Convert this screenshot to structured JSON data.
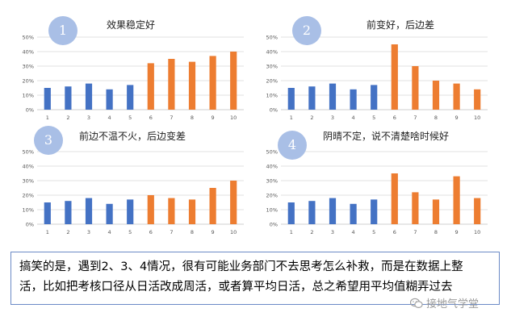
{
  "colors": {
    "blue": "#4472c4",
    "orange": "#ed7d31",
    "badge": "#a9bfe6",
    "grid": "#d9d9d9",
    "border": "#6b8ac6"
  },
  "chart_data": [
    {
      "type": "bar",
      "badge": "1",
      "title": "效果稳定好",
      "categories": [
        "1",
        "2",
        "3",
        "4",
        "5",
        "6",
        "7",
        "8",
        "9",
        "10"
      ],
      "values": [
        15,
        16,
        18,
        14,
        17,
        32,
        35,
        33,
        37,
        40
      ],
      "bar_colors": [
        "blue",
        "blue",
        "blue",
        "blue",
        "blue",
        "orange",
        "orange",
        "orange",
        "orange",
        "orange"
      ],
      "ylim": [
        0,
        50
      ],
      "yticks": [
        "0%",
        "10%",
        "20%",
        "30%",
        "40%",
        "50%"
      ],
      "grid": true
    },
    {
      "type": "bar",
      "badge": "2",
      "title": "前变好，后边差",
      "categories": [
        "1",
        "2",
        "3",
        "4",
        "5",
        "6",
        "7",
        "8",
        "9",
        "10"
      ],
      "values": [
        15,
        16,
        18,
        14,
        17,
        45,
        30,
        20,
        18,
        14
      ],
      "bar_colors": [
        "blue",
        "blue",
        "blue",
        "blue",
        "blue",
        "orange",
        "orange",
        "orange",
        "orange",
        "orange"
      ],
      "ylim": [
        0,
        50
      ],
      "yticks": [
        "0%",
        "10%",
        "20%",
        "30%",
        "40%",
        "50%"
      ],
      "grid": true
    },
    {
      "type": "bar",
      "badge": "3",
      "title": "前边不温不火，后边变差",
      "categories": [
        "1",
        "2",
        "3",
        "4",
        "5",
        "6",
        "7",
        "8",
        "9",
        "10"
      ],
      "values": [
        15,
        16,
        18,
        14,
        17,
        20,
        18,
        17,
        25,
        30
      ],
      "bar_colors": [
        "blue",
        "blue",
        "blue",
        "blue",
        "blue",
        "orange",
        "orange",
        "orange",
        "orange",
        "orange"
      ],
      "ylim": [
        0,
        50
      ],
      "yticks": [
        "0%",
        "10%",
        "20%",
        "30%",
        "40%",
        "50%"
      ],
      "grid": true
    },
    {
      "type": "bar",
      "badge": "4",
      "title": "阴晴不定，说不清楚啥时候好",
      "categories": [
        "1",
        "2",
        "3",
        "4",
        "5",
        "6",
        "7",
        "8",
        "9",
        "10"
      ],
      "values": [
        15,
        16,
        18,
        14,
        17,
        35,
        22,
        17,
        33,
        18
      ],
      "bar_colors": [
        "blue",
        "blue",
        "blue",
        "blue",
        "blue",
        "orange",
        "orange",
        "orange",
        "orange",
        "orange"
      ],
      "ylim": [
        0,
        50
      ],
      "yticks": [
        "0%",
        "10%",
        "20%",
        "30%",
        "40%",
        "50%"
      ],
      "grid": true
    }
  ],
  "caption": {
    "line1": "搞笑的是，遇到2、3、4情况，很有可能业务部门不去思考怎么补救，而是在数据上整",
    "line2": "活，比如把考核口径从日活改成周活，或者算平均日活，总之希望用平均值糊弄过去"
  },
  "watermark": {
    "text": "接地气学堂",
    "icon": "wechat-icon"
  }
}
